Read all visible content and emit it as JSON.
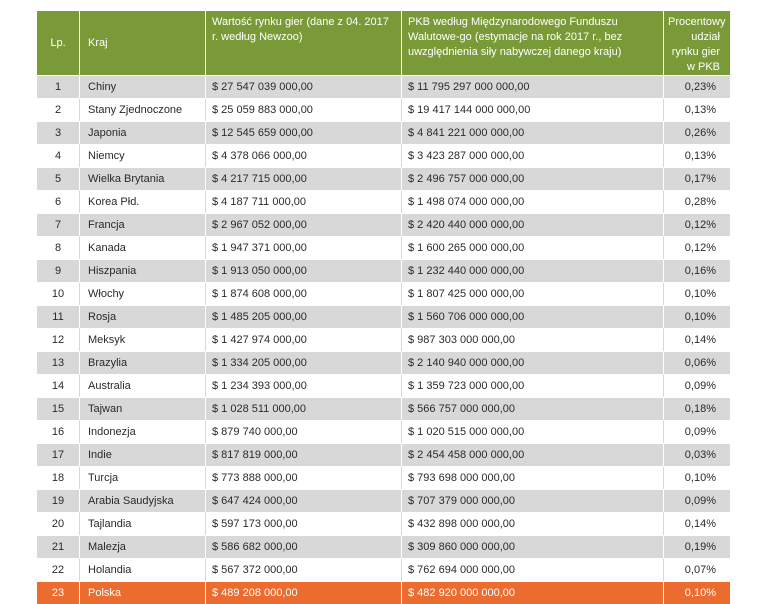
{
  "colors": {
    "header_bg": "#7a9a38",
    "row_shade": "#d8d8d8",
    "highlight": "#ec6b2e"
  },
  "table": {
    "headers": {
      "lp": "Lp.",
      "kraj": "Kraj",
      "rynek": "Wartość rynku gier (dane z 04. 2017 r. według Newzoo)",
      "pkb": "PKB według Międzynarodowego Funduszu Walutowe-go (estymacje na rok 2017 r., bez uwzględnienia siły nabywczej danego kraju)",
      "proc": "Procentowy udział rynku gier w PKB"
    },
    "rows": [
      {
        "lp": "1",
        "kraj": "Chiny",
        "rynek": "$ 27 547 039 000,00",
        "pkb": "$ 11 795 297 000 000,00",
        "proc": "0,23%"
      },
      {
        "lp": "2",
        "kraj": "Stany Zjednoczone",
        "rynek": "$ 25 059 883 000,00",
        "pkb": "$ 19 417 144 000 000,00",
        "proc": "0,13%"
      },
      {
        "lp": "3",
        "kraj": "Japonia",
        "rynek": "$ 12 545 659 000,00",
        "pkb": "$ 4 841 221 000 000,00",
        "proc": "0,26%"
      },
      {
        "lp": "4",
        "kraj": "Niemcy",
        "rynek": "$ 4 378 066 000,00",
        "pkb": "$ 3 423 287 000 000,00",
        "proc": "0,13%"
      },
      {
        "lp": "5",
        "kraj": "Wielka Brytania",
        "rynek": "$ 4 217 715 000,00",
        "pkb": "$ 2 496 757 000 000,00",
        "proc": "0,17%"
      },
      {
        "lp": "6",
        "kraj": "Korea Płd.",
        "rynek": "$ 4 187 711 000,00",
        "pkb": "$ 1 498 074 000 000,00",
        "proc": "0,28%"
      },
      {
        "lp": "7",
        "kraj": "Francja",
        "rynek": "$ 2 967 052 000,00",
        "pkb": "$ 2 420 440 000 000,00",
        "proc": "0,12%"
      },
      {
        "lp": "8",
        "kraj": "Kanada",
        "rynek": "$ 1 947 371 000,00",
        "pkb": "$ 1 600 265 000 000,00",
        "proc": "0,12%"
      },
      {
        "lp": "9",
        "kraj": "Hiszpania",
        "rynek": "$ 1 913 050 000,00",
        "pkb": "$ 1 232 440 000 000,00",
        "proc": "0,16%"
      },
      {
        "lp": "10",
        "kraj": "Włochy",
        "rynek": "$ 1 874 608 000,00",
        "pkb": "$ 1 807 425 000 000,00",
        "proc": "0,10%"
      },
      {
        "lp": "11",
        "kraj": "Rosja",
        "rynek": "$ 1 485 205 000,00",
        "pkb": "$ 1 560 706 000 000,00",
        "proc": "0,10%"
      },
      {
        "lp": "12",
        "kraj": "Meksyk",
        "rynek": "$ 1 427 974 000,00",
        "pkb": "$ 987 303 000 000,00",
        "proc": "0,14%"
      },
      {
        "lp": "13",
        "kraj": "Brazylia",
        "rynek": "$ 1 334 205 000,00",
        "pkb": "$ 2 140 940 000 000,00",
        "proc": "0,06%"
      },
      {
        "lp": "14",
        "kraj": "Australia",
        "rynek": "$ 1 234 393 000,00",
        "pkb": "$ 1 359 723 000 000,00",
        "proc": "0,09%"
      },
      {
        "lp": "15",
        "kraj": "Tajwan",
        "rynek": "$ 1 028 511 000,00",
        "pkb": "$ 566 757 000 000,00",
        "proc": "0,18%"
      },
      {
        "lp": "16",
        "kraj": "Indonezja",
        "rynek": "$ 879 740 000,00",
        "pkb": "$ 1 020 515 000 000,00",
        "proc": "0,09%"
      },
      {
        "lp": "17",
        "kraj": "Indie",
        "rynek": "$ 817 819 000,00",
        "pkb": "$ 2 454 458 000 000,00",
        "proc": "0,03%"
      },
      {
        "lp": "18",
        "kraj": "Turcja",
        "rynek": "$ 773 888 000,00",
        "pkb": "$ 793 698 000 000,00",
        "proc": "0,10%"
      },
      {
        "lp": "19",
        "kraj": "Arabia Saudyjska",
        "rynek": "$ 647 424 000,00",
        "pkb": "$ 707 379 000 000,00",
        "proc": "0,09%"
      },
      {
        "lp": "20",
        "kraj": "Tajlandia",
        "rynek": "$ 597 173 000,00",
        "pkb": "$ 432 898 000 000,00",
        "proc": "0,14%"
      },
      {
        "lp": "21",
        "kraj": "Malezja",
        "rynek": "$ 586 682 000,00",
        "pkb": "$ 309 860 000 000,00",
        "proc": "0,19%"
      },
      {
        "lp": "22",
        "kraj": "Holandia",
        "rynek": "$ 567 372 000,00",
        "pkb": "$ 762 694 000 000,00",
        "proc": "0,07%"
      },
      {
        "lp": "23",
        "kraj": "Polska",
        "rynek": "$ 489 208 000,00",
        "pkb": "$ 482 920 000 000,00",
        "proc": "0,10%",
        "highlight": true
      }
    ]
  }
}
